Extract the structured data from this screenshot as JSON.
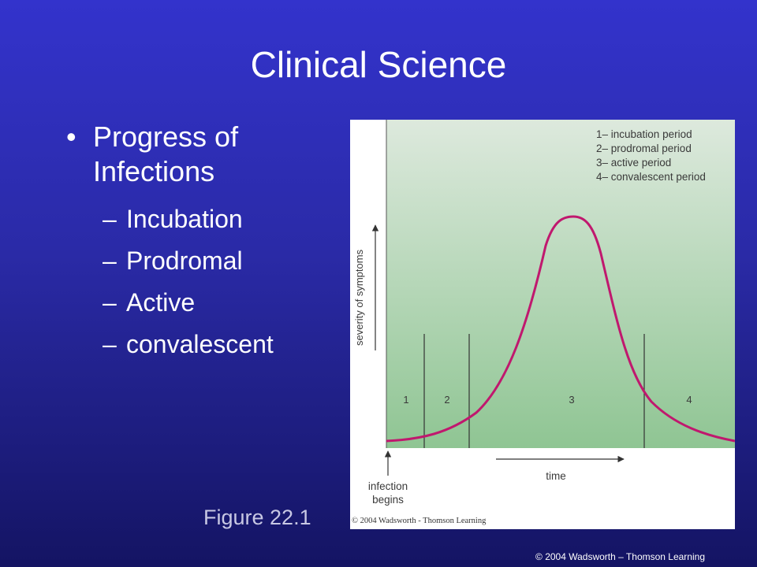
{
  "slide": {
    "title": "Clinical Science",
    "main_bullet": "Progress of Infections",
    "sub_bullets": [
      "Incubation",
      "Prodromal",
      "Active",
      "convalescent"
    ],
    "figure_caption": "Figure 22.1",
    "copyright": "© 2004 Wadsworth – Thomson Learning"
  },
  "figure": {
    "legend": [
      "1– incubation period",
      "2– prodromal period",
      "3– active period",
      "4– convalescent period"
    ],
    "period_labels": [
      "1",
      "2",
      "3",
      "4"
    ],
    "y_axis_label": "severity of symptoms",
    "x_axis_label": "time",
    "start_label_line1": "infection",
    "start_label_line2": "begins",
    "copyright": "© 2004 Wadsworth - Thomson Learning",
    "colors": {
      "curve": "#c0186e",
      "bg_top": "#dde9dd",
      "bg_bottom": "#8fc593",
      "slide_top": "#3333cc",
      "slide_bottom": "#141463"
    }
  }
}
